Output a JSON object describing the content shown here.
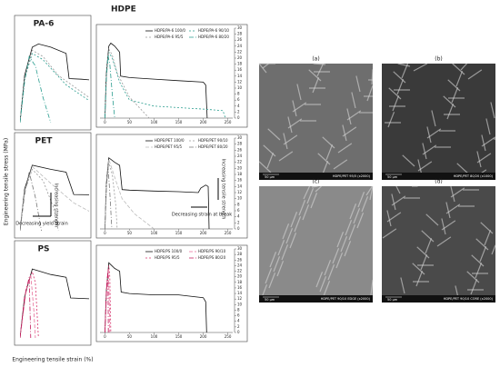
{
  "figure_title": "HDPE",
  "axis_labels": {
    "x": "Engineering tensile strain (%)",
    "y": "Engineering tensile stress (MPa)"
  },
  "chart_data": [
    {
      "type": "line",
      "title": "PA-6",
      "xlim": [
        0,
        45
      ],
      "ylim": [
        0,
        28
      ],
      "series": [
        {
          "color": "#111111",
          "dash": "",
          "x": [
            0,
            3,
            8,
            12,
            20,
            30,
            32,
            40,
            45
          ],
          "values": [
            0,
            15,
            24,
            25,
            24,
            22,
            14,
            13.8,
            13.6
          ]
        },
        {
          "color": "#2a9d8f",
          "dash": "2,2",
          "x": [
            0,
            3,
            8,
            15,
            30,
            45
          ],
          "values": [
            0,
            14,
            22,
            20,
            12,
            7
          ]
        },
        {
          "color": "#999999",
          "dash": "2,2",
          "x": [
            0,
            3,
            8,
            15,
            25,
            45
          ],
          "values": [
            0,
            14,
            23,
            21,
            15,
            8
          ]
        },
        {
          "color": "#2a9d8f",
          "dash": "5,2,1,2",
          "x": [
            0,
            3,
            6,
            10,
            15,
            20
          ],
          "values": [
            0,
            13,
            21,
            18,
            8,
            0
          ]
        }
      ]
    },
    {
      "type": "line",
      "title": "PET",
      "xlim": [
        0,
        45
      ],
      "ylim": [
        0,
        28
      ],
      "annotations": [
        "Increasing strength",
        "Decreasing yield strain"
      ],
      "series": [
        {
          "color": "#111111",
          "dash": "",
          "x": [
            0,
            3,
            8,
            20,
            30,
            35,
            45
          ],
          "values": [
            0,
            15,
            23.5,
            22,
            21,
            13,
            12.9
          ]
        },
        {
          "color": "#999999",
          "dash": "2,2",
          "x": [
            0,
            3,
            8,
            15,
            22,
            25
          ],
          "values": [
            0,
            14,
            22,
            18,
            8,
            0
          ]
        },
        {
          "color": "#bbbbbb",
          "dash": "4,2",
          "x": [
            0,
            3,
            8,
            20,
            35,
            45
          ],
          "values": [
            0,
            14,
            23,
            17,
            10,
            7
          ]
        },
        {
          "color": "#777777",
          "dash": "5,2,1,2",
          "x": [
            0,
            3,
            6,
            10,
            14
          ],
          "values": [
            0,
            13,
            21,
            12,
            0
          ]
        }
      ]
    },
    {
      "type": "line",
      "title": "PS",
      "xlim": [
        0,
        45
      ],
      "ylim": [
        0,
        28
      ],
      "series": [
        {
          "color": "#111111",
          "dash": "",
          "x": [
            0,
            3,
            8,
            20,
            30,
            33,
            45
          ],
          "values": [
            0,
            15,
            25,
            23,
            22,
            14.5,
            14.2
          ]
        },
        {
          "color": "#d6336c",
          "dash": "2,2",
          "x": [
            0,
            4,
            8,
            10,
            12
          ],
          "values": [
            0,
            18,
            24,
            20,
            0
          ]
        },
        {
          "color": "#e76f9a",
          "dash": "4,2",
          "x": [
            0,
            4,
            7,
            9,
            10
          ],
          "values": [
            0,
            17,
            23,
            10,
            0
          ]
        },
        {
          "color": "#c2185b",
          "dash": "5,2,1,2",
          "x": [
            0,
            3,
            6,
            7
          ],
          "values": [
            0,
            15,
            22,
            0
          ]
        }
      ]
    },
    {
      "type": "line",
      "xlim": [
        -10,
        260
      ],
      "ylim": [
        0,
        30
      ],
      "xticks": [
        0,
        50,
        100,
        150,
        200,
        250
      ],
      "yticks": [
        0,
        2,
        4,
        6,
        8,
        10,
        12,
        14,
        16,
        18,
        20,
        22,
        24,
        26,
        28,
        30
      ],
      "series": [
        {
          "name": "HDPE/PA-6 100/0",
          "color": "#111111",
          "dash": "",
          "x": [
            0,
            3,
            8,
            12,
            20,
            30,
            32,
            50,
            100,
            150,
            200,
            205,
            208
          ],
          "values": [
            0,
            15,
            24,
            25,
            24,
            22,
            14,
            13.5,
            13,
            12.5,
            12,
            11,
            0
          ]
        },
        {
          "name": "HDPE/PA-6 90/10",
          "color": "#2a9d8f",
          "dash": "2,2",
          "x": [
            0,
            3,
            8,
            15,
            30,
            50,
            100,
            150,
            200,
            240,
            245
          ],
          "values": [
            0,
            14,
            22,
            20,
            12,
            6,
            4,
            3.5,
            3,
            2.5,
            0
          ]
        },
        {
          "name": "HDPE/PA-6 95/5",
          "color": "#999999",
          "dash": "2,2",
          "x": [
            0,
            3,
            8,
            15,
            25,
            50,
            90
          ],
          "values": [
            0,
            14,
            23,
            21,
            15,
            7,
            0
          ]
        },
        {
          "name": "HDPE/PA-6 80/20",
          "color": "#2a9d8f",
          "dash": "5,2,1,2",
          "x": [
            0,
            3,
            6,
            10,
            15,
            20
          ],
          "values": [
            0,
            13,
            21,
            18,
            8,
            0
          ]
        }
      ]
    },
    {
      "type": "line",
      "xlim": [
        -10,
        260
      ],
      "ylim": [
        0,
        30
      ],
      "xticks": [
        0,
        50,
        100,
        150,
        200,
        250
      ],
      "yticks": [
        0,
        2,
        4,
        6,
        8,
        10,
        12,
        14,
        16,
        18,
        20,
        22,
        24,
        26,
        28,
        30
      ],
      "annotations": [
        "Decreasing strain at break",
        "Increasing tensile strength"
      ],
      "series": [
        {
          "name": "HDPE/PET 100/0",
          "color": "#111111",
          "dash": "",
          "x": [
            0,
            3,
            8,
            20,
            30,
            35,
            50,
            100,
            150,
            190,
            195,
            205,
            210,
            212
          ],
          "values": [
            0,
            15,
            23.5,
            22,
            21,
            13,
            12.8,
            12.5,
            12.3,
            12,
            13.5,
            14.5,
            14,
            0
          ]
        },
        {
          "name": "HDPE/PET 90/10",
          "color": "#999999",
          "dash": "2,2",
          "x": [
            0,
            3,
            8,
            15,
            22,
            25
          ],
          "values": [
            0,
            14,
            22,
            18,
            8,
            0
          ]
        },
        {
          "name": "HDPE/PET 95/5",
          "color": "#bbbbbb",
          "dash": "4,2",
          "x": [
            0,
            3,
            8,
            20,
            35,
            60,
            100
          ],
          "values": [
            0,
            14,
            23,
            17,
            10,
            5,
            0
          ]
        },
        {
          "name": "HDPE/PET 80/20",
          "color": "#777777",
          "dash": "5,2,1,2",
          "x": [
            0,
            3,
            6,
            10,
            14
          ],
          "values": [
            0,
            13,
            21,
            12,
            0
          ]
        }
      ]
    },
    {
      "type": "line",
      "xlim": [
        -10,
        260
      ],
      "ylim": [
        0,
        30
      ],
      "xticks": [
        0,
        50,
        100,
        150,
        200,
        250
      ],
      "yticks": [
        0,
        2,
        4,
        6,
        8,
        10,
        12,
        14,
        16,
        18,
        20,
        22,
        24,
        26,
        28,
        30
      ],
      "series": [
        {
          "name": "HDPE/PS 100/0",
          "color": "#111111",
          "dash": "",
          "x": [
            0,
            3,
            8,
            20,
            30,
            33,
            50,
            100,
            150,
            200,
            205,
            207
          ],
          "values": [
            0,
            15,
            25,
            23,
            22,
            14.5,
            14,
            13.5,
            13.5,
            12.5,
            11,
            0
          ]
        },
        {
          "name": "HDPE/PS 90/10",
          "color": "#e76f9a",
          "dash": "4,2",
          "x": [
            0,
            4,
            7,
            9,
            10
          ],
          "values": [
            0,
            17,
            23,
            10,
            0
          ]
        },
        {
          "name": "HDPE/PS 95/5",
          "color": "#d6336c",
          "dash": "2,2",
          "x": [
            0,
            4,
            8,
            10,
            12
          ],
          "values": [
            0,
            18,
            24,
            20,
            0
          ]
        },
        {
          "name": "HDPE/PS 80/20",
          "color": "#c2185b",
          "dash": "5,2,1,2",
          "x": [
            0,
            3,
            6,
            7
          ],
          "values": [
            0,
            15,
            22,
            0
          ]
        }
      ]
    }
  ],
  "images": [
    {
      "label": "(a)",
      "scale": "50 µm",
      "caption": "HDPE/PET 95/5 (x2000)"
    },
    {
      "label": "(b)",
      "scale": "50 µm",
      "caption": "HDPE/PET 80/20 (x1000)"
    },
    {
      "label": "(c)",
      "scale": "50 µm",
      "caption": "HDPE/PET 90/10 EDGE (x2000)"
    },
    {
      "label": "(d)",
      "scale": "50 µm",
      "caption": "HDPE/PET 90/10 CORE (x2000)"
    }
  ]
}
